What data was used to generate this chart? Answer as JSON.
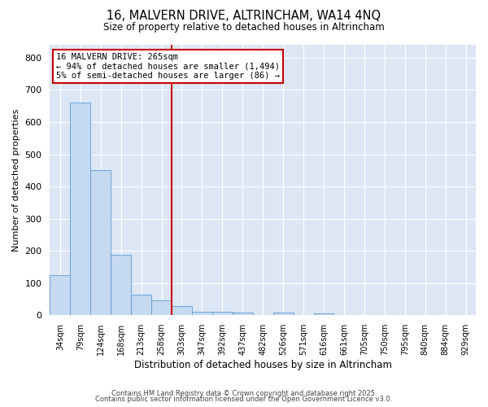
{
  "title_line1": "16, MALVERN DRIVE, ALTRINCHAM, WA14 4NQ",
  "title_line2": "Size of property relative to detached houses in Altrincham",
  "xlabel": "Distribution of detached houses by size in Altrincham",
  "ylabel": "Number of detached properties",
  "categories": [
    "34sqm",
    "79sqm",
    "124sqm",
    "168sqm",
    "213sqm",
    "258sqm",
    "303sqm",
    "347sqm",
    "392sqm",
    "437sqm",
    "482sqm",
    "526sqm",
    "571sqm",
    "616sqm",
    "661sqm",
    "705sqm",
    "750sqm",
    "795sqm",
    "840sqm",
    "884sqm",
    "929sqm"
  ],
  "values": [
    125,
    660,
    450,
    188,
    63,
    46,
    28,
    12,
    12,
    9,
    0,
    8,
    0,
    7,
    0,
    0,
    0,
    0,
    0,
    0,
    0
  ],
  "bar_color": "#c5d9f0",
  "bar_edge_color": "#5b9bd5",
  "ylim": [
    0,
    840
  ],
  "yticks": [
    0,
    100,
    200,
    300,
    400,
    500,
    600,
    700,
    800
  ],
  "red_line_x": 5.5,
  "annotation_line1": "16 MALVERN DRIVE: 265sqm",
  "annotation_line2": "← 94% of detached houses are smaller (1,494)",
  "annotation_line3": "5% of semi-detached houses are larger (86) →",
  "annotation_box_color": "#cc0000",
  "background_color": "#dce6f5",
  "grid_color": "#ffffff",
  "footer_line1": "Contains HM Land Registry data © Crown copyright and database right 2025.",
  "footer_line2": "Contains public sector information licensed under the Open Government Licence v3.0."
}
